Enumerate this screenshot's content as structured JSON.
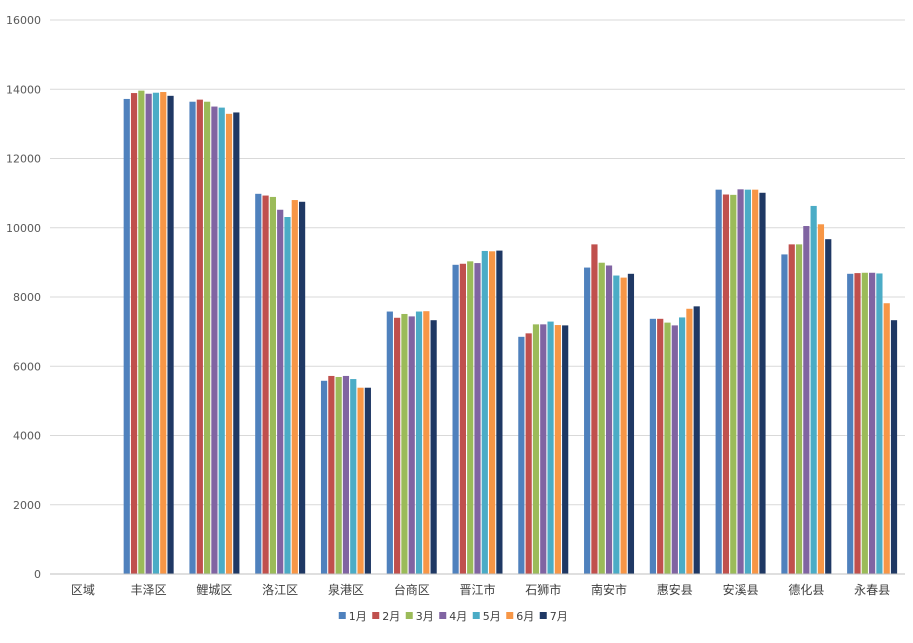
{
  "chart_data": {
    "type": "bar",
    "categories": [
      "区域",
      "丰泽区",
      "鲤城区",
      "洛江区",
      "泉港区",
      "台商区",
      "晋江市",
      "石狮市",
      "南安市",
      "惠安县",
      "安溪县",
      "德化县",
      "永春县"
    ],
    "series": [
      {
        "name": "1月",
        "color": "#4F81BD",
        "values": [
          null,
          13720,
          13640,
          10980,
          5580,
          7580,
          8930,
          6850,
          8850,
          7370,
          11100,
          9230,
          8670
        ]
      },
      {
        "name": "2月",
        "color": "#C0504D",
        "values": [
          null,
          13890,
          13700,
          10930,
          5720,
          7400,
          8960,
          6950,
          9520,
          7370,
          10960,
          9520,
          8690
        ]
      },
      {
        "name": "3月",
        "color": "#9BBB59",
        "values": [
          null,
          13960,
          13640,
          10890,
          5690,
          7510,
          9030,
          7210,
          8990,
          7260,
          10950,
          9520,
          8700
        ]
      },
      {
        "name": "4月",
        "color": "#8064A2",
        "values": [
          null,
          13870,
          13500,
          10520,
          5720,
          7440,
          8980,
          7210,
          8910,
          7180,
          11110,
          10050,
          8700
        ]
      },
      {
        "name": "5月",
        "color": "#4BACC6",
        "values": [
          null,
          13900,
          13470,
          10310,
          5630,
          7580,
          9330,
          7290,
          8620,
          7410,
          11100,
          10630,
          8680
        ]
      },
      {
        "name": "6月",
        "color": "#F79646",
        "values": [
          null,
          13920,
          13290,
          10800,
          5380,
          7590,
          9320,
          7190,
          8560,
          7660,
          11100,
          10100,
          7820
        ]
      },
      {
        "name": "7月",
        "color": "#1F3864",
        "values": [
          null,
          13810,
          13330,
          10750,
          5380,
          7330,
          9340,
          7180,
          8670,
          7730,
          11010,
          9670,
          7330
        ]
      }
    ],
    "yticks": [
      0,
      2000,
      4000,
      6000,
      8000,
      10000,
      12000,
      14000,
      16000
    ],
    "ylim": [
      0,
      16000
    ],
    "grid": true,
    "legend": "bottom",
    "title": "",
    "xlabel": "",
    "ylabel": ""
  }
}
